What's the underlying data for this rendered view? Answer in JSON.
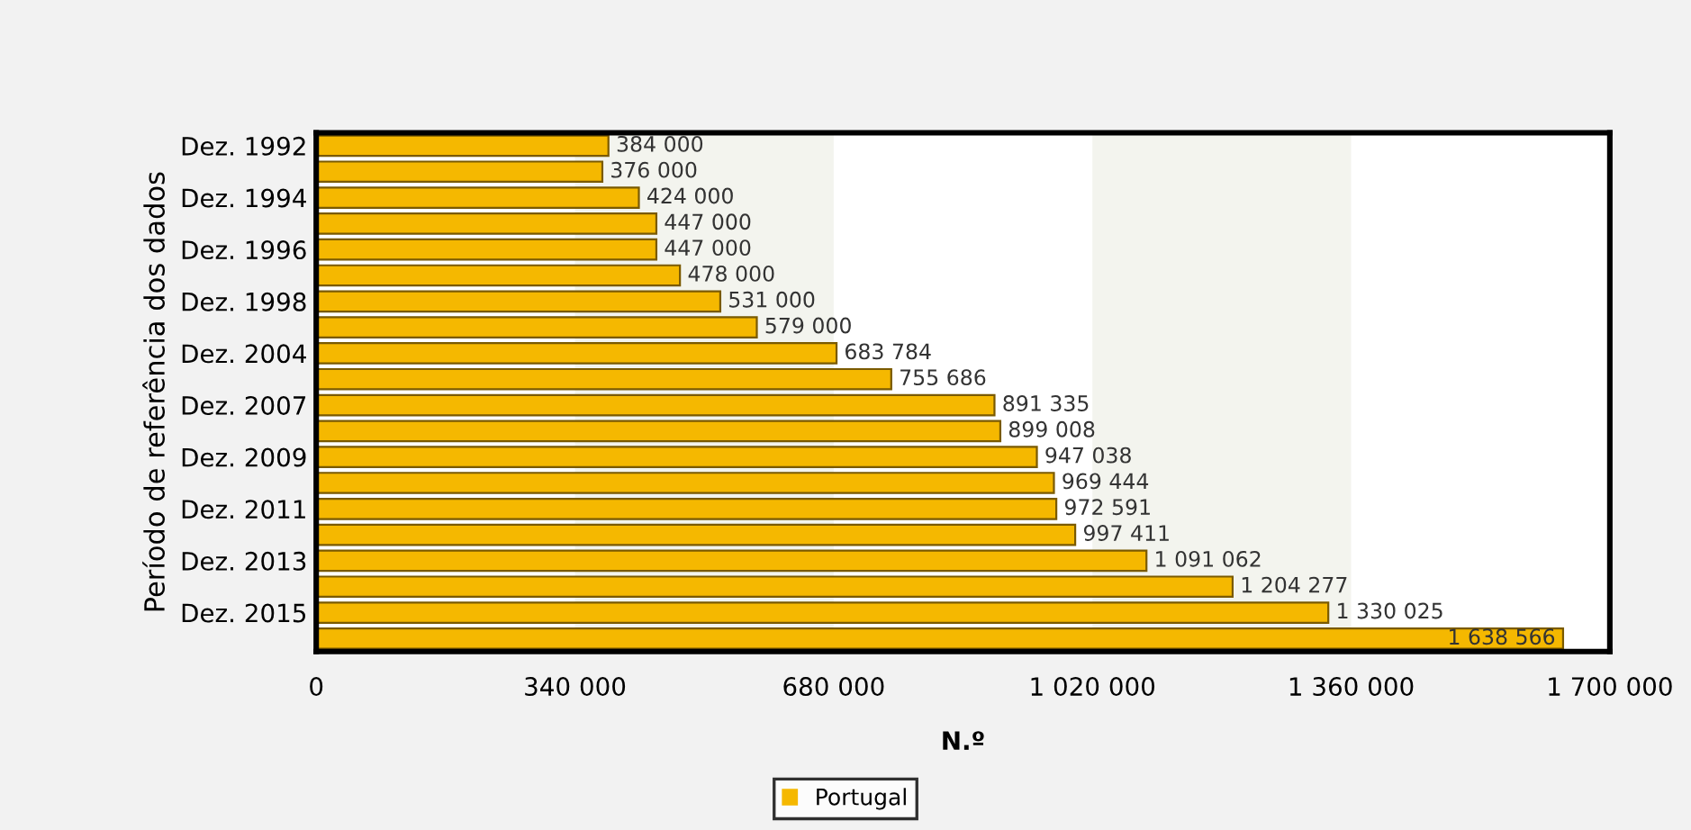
{
  "chart_data": {
    "type": "bar",
    "orientation": "horizontal",
    "xlabel": "N.º",
    "ylabel": "Período de referência dos dados",
    "categories": [
      "Dez. 1992",
      null,
      "Dez. 1994",
      null,
      "Dez. 1996",
      null,
      "Dez. 1998",
      null,
      "Dez. 2004",
      null,
      "Dez. 2007",
      null,
      "Dez. 2009",
      null,
      "Dez. 2011",
      null,
      "Dez. 2013",
      null,
      "Dez. 2015",
      null
    ],
    "series": [
      {
        "name": "Portugal",
        "color": "#f5b800",
        "values": [
          384000,
          376000,
          424000,
          447000,
          447000,
          478000,
          531000,
          579000,
          683784,
          755686,
          891335,
          899008,
          947038,
          969444,
          972591,
          997411,
          1091062,
          1204277,
          1330025,
          1638566
        ],
        "value_labels": [
          "384 000",
          "376 000",
          "424 000",
          "447 000",
          "447 000",
          "478 000",
          "531 000",
          "579 000",
          "683 784",
          "755 686",
          "891 335",
          "899 008",
          "947 038",
          "969 444",
          "972 591",
          "997 411",
          "1 091 062",
          "1 204 277",
          "1 330 025",
          "1 638 566"
        ]
      }
    ],
    "xlim": [
      0,
      1700000
    ],
    "xticks": [
      {
        "value": 0,
        "label": "0"
      },
      {
        "value": 340000,
        "label": "340 000"
      },
      {
        "value": 680000,
        "label": "680 000"
      },
      {
        "value": 1020000,
        "label": "1 020 000"
      },
      {
        "value": 1360000,
        "label": "1 360 000"
      },
      {
        "value": 1700000,
        "label": "1 700 000"
      }
    ],
    "bands": [
      {
        "axis": "x",
        "from": 340000,
        "to": 680000,
        "color": "#f3f4ee"
      },
      {
        "axis": "x",
        "from": 1020000,
        "to": 1360000,
        "color": "#f3f4ee"
      }
    ],
    "legend": "bottom"
  }
}
